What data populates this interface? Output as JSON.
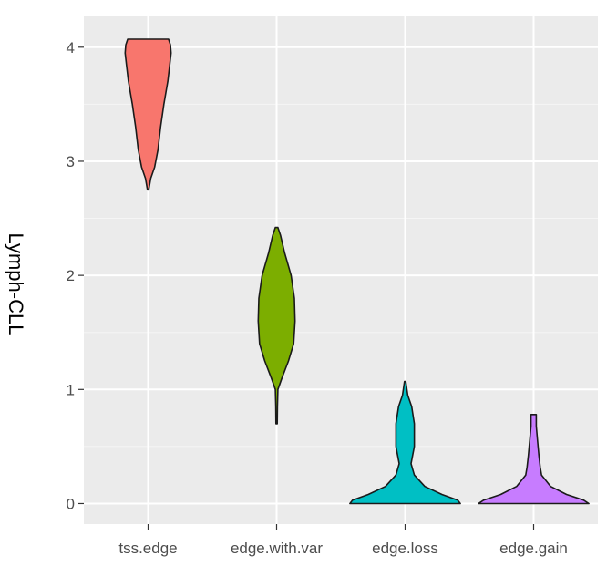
{
  "chart_data": {
    "type": "violin",
    "ylabel": "Lymph-CLL",
    "categories": [
      "tss.edge",
      "edge.with.var",
      "edge.loss",
      "edge.gain"
    ],
    "ylim": [
      -0.18,
      4.27
    ],
    "yticks": [
      0,
      1,
      2,
      3,
      4
    ],
    "grid": true,
    "legend": "none",
    "series": [
      {
        "category": "tss.edge",
        "color": "#F8766D",
        "range": [
          2.75,
          4.07
        ],
        "density": [
          [
            2.75,
            0.005
          ],
          [
            2.85,
            0.02
          ],
          [
            2.95,
            0.05
          ],
          [
            3.1,
            0.075
          ],
          [
            3.3,
            0.095
          ],
          [
            3.5,
            0.12
          ],
          [
            3.7,
            0.15
          ],
          [
            3.85,
            0.165
          ],
          [
            3.95,
            0.175
          ],
          [
            4.02,
            0.17
          ],
          [
            4.07,
            0.155
          ]
        ]
      },
      {
        "category": "edge.with.var",
        "color": "#7CAE00",
        "range": [
          0.7,
          2.42
        ],
        "density": [
          [
            0.7,
            0.005
          ],
          [
            0.85,
            0.006
          ],
          [
            1.0,
            0.01
          ],
          [
            1.1,
            0.04
          ],
          [
            1.25,
            0.09
          ],
          [
            1.4,
            0.13
          ],
          [
            1.6,
            0.14
          ],
          [
            1.8,
            0.135
          ],
          [
            2.0,
            0.11
          ],
          [
            2.2,
            0.06
          ],
          [
            2.35,
            0.03
          ],
          [
            2.42,
            0.01
          ]
        ]
      },
      {
        "category": "edge.loss",
        "color": "#00BFC4",
        "range": [
          0.0,
          1.07
        ],
        "density": [
          [
            0.0,
            0.42
          ],
          [
            0.03,
            0.4
          ],
          [
            0.08,
            0.28
          ],
          [
            0.15,
            0.15
          ],
          [
            0.25,
            0.07
          ],
          [
            0.35,
            0.045
          ],
          [
            0.5,
            0.07
          ],
          [
            0.7,
            0.07
          ],
          [
            0.85,
            0.05
          ],
          [
            0.95,
            0.02
          ],
          [
            1.07,
            0.005
          ]
        ]
      },
      {
        "category": "edge.gain",
        "color": "#C77CFF",
        "range": [
          0.0,
          0.78
        ],
        "density": [
          [
            0.0,
            0.42
          ],
          [
            0.03,
            0.38
          ],
          [
            0.08,
            0.25
          ],
          [
            0.15,
            0.13
          ],
          [
            0.25,
            0.06
          ],
          [
            0.32,
            0.05
          ],
          [
            0.42,
            0.04
          ],
          [
            0.55,
            0.03
          ],
          [
            0.68,
            0.02
          ],
          [
            0.78,
            0.02
          ]
        ]
      }
    ]
  }
}
